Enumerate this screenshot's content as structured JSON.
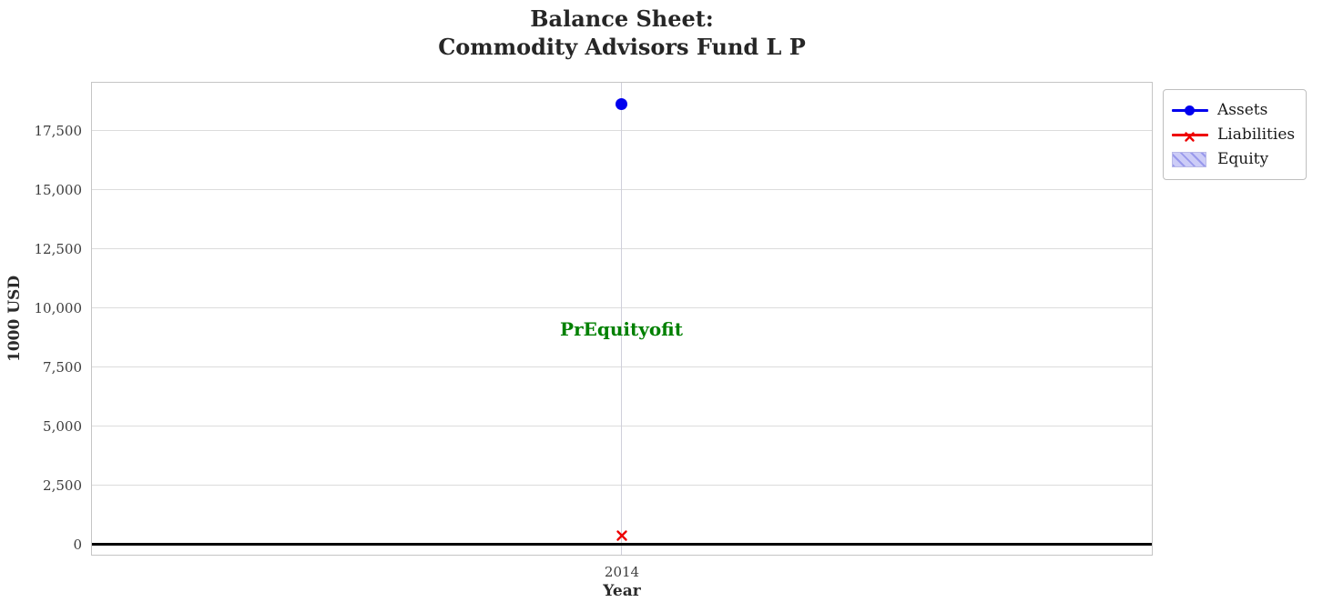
{
  "title": {
    "line1": "Balance Sheet:",
    "line2": "Commodity Advisors Fund L P"
  },
  "axes": {
    "xlabel": "Year",
    "ylabel": "1000 USD"
  },
  "annotation": {
    "text": "PrEquityofit",
    "color": "#008000"
  },
  "legend": {
    "items": [
      {
        "label": "Assets",
        "swatch": "line-circle",
        "color": "#0000ee"
      },
      {
        "label": "Liabilities",
        "swatch": "line-x",
        "color": "#ee0000"
      },
      {
        "label": "Equity",
        "swatch": "hatch-patch",
        "fill": "#ccccf7",
        "hatch": "#9898ec"
      }
    ]
  },
  "chart_data": {
    "type": "line",
    "x": [
      "2014"
    ],
    "series": [
      {
        "name": "Assets",
        "values": [
          18600
        ],
        "color": "#0000ee",
        "marker": "circle"
      },
      {
        "name": "Liabilities",
        "values": [
          400
        ],
        "color": "#ee0000",
        "marker": "x"
      },
      {
        "name": "Equity",
        "values": [],
        "color": "#ccccf7",
        "style": "hatched-area",
        "note": "legend entry only; no visible fill"
      }
    ],
    "title": "Balance Sheet: Commodity Advisors Fund L P",
    "xlabel": "Year",
    "ylabel": "1000 USD",
    "xticks": [
      "2014"
    ],
    "yticks": [
      0,
      2500,
      5000,
      7500,
      10000,
      12500,
      15000,
      17500
    ],
    "ylim": [
      -400,
      19500
    ],
    "grid": true,
    "zero_line": {
      "value": 0,
      "color": "#000000"
    },
    "annotation": {
      "text": "PrEquityofit",
      "x": "2014",
      "y": 9100,
      "color": "#008000"
    },
    "legend_position": "outside upper right"
  }
}
